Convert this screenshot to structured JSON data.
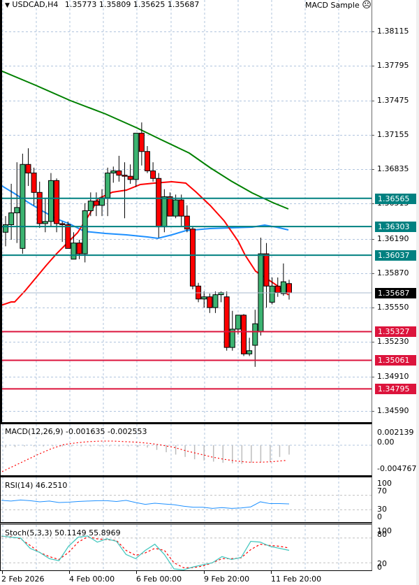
{
  "header": {
    "symbol": "USDCAD,H4",
    "open": "1.35773",
    "high": "1.35809",
    "low": "1.35625",
    "close": "1.35687",
    "ea_name": "MACD Sample",
    "ea_status_icon": "sad-face-icon",
    "ea_status_glyph": "☹"
  },
  "colors": {
    "bull_candle": "#3cb371",
    "bear_candle": "#ff0000",
    "ma_fast": "#ff0000",
    "ma_mid": "#1e90ff",
    "ma_slow": "#008000",
    "resistance_level": "#008080",
    "support_level": "#dc143c",
    "current_price_bg": "#000000",
    "grid": "#b0c4de"
  },
  "price_axis": {
    "ticks": [
      "1.38115",
      "1.37795",
      "1.37475",
      "1.37155",
      "1.36835",
      "1.36515",
      "1.36190",
      "1.35870",
      "1.35550",
      "1.35230",
      "1.34910",
      "1.34590"
    ],
    "current_price": "1.35687",
    "levels": [
      {
        "value": "1.36565",
        "type": "resistance"
      },
      {
        "value": "1.36303",
        "type": "resistance"
      },
      {
        "value": "1.36037",
        "type": "resistance"
      },
      {
        "value": "1.35327",
        "type": "support"
      },
      {
        "value": "1.35061",
        "type": "support"
      },
      {
        "value": "1.34795",
        "type": "support"
      }
    ]
  },
  "time_axis": {
    "labels": [
      "2 Feb 2026",
      "4 Feb 00:00",
      "6 Feb 00:00",
      "9 Feb 20:00",
      "11 Feb 20:00"
    ]
  },
  "macd": {
    "label": "MACD(12,26,9) -0.001635 -0.002553",
    "axis": [
      "0.002139",
      "0.00",
      "-0.004767"
    ]
  },
  "rsi": {
    "label": "RSI(14) 46.2510",
    "axis": [
      "100",
      "70",
      "30",
      "0"
    ]
  },
  "stoch": {
    "label": "Stoch(5,3,3) 50.1149 55.8969",
    "axis": [
      "100",
      "80",
      "20",
      "0"
    ]
  },
  "chart_data": [
    {
      "type": "candlestick",
      "title": "USDCAD,H4 1.35773 1.35809 1.35625 1.35687",
      "ylim": [
        1.3449,
        1.3842
      ],
      "grid": true,
      "x": [
        "2 Feb 2026",
        "",
        "",
        "",
        "",
        "",
        "",
        "",
        "4 Feb 00:00",
        "",
        "",
        "",
        "",
        "",
        "",
        "",
        "",
        "",
        "",
        "6 Feb 00:00",
        "",
        "",
        "",
        "",
        "",
        "",
        "",
        "",
        "",
        "",
        "",
        "",
        "9 Feb 20:00",
        "",
        "",
        "",
        "",
        "",
        "",
        "",
        "",
        "11 Feb 20:00"
      ],
      "candles": [
        {
          "o": 1.3625,
          "h": 1.364,
          "l": 1.3612,
          "c": 1.3632
        },
        {
          "o": 1.3632,
          "h": 1.367,
          "l": 1.3618,
          "c": 1.3643
        },
        {
          "o": 1.3643,
          "h": 1.369,
          "l": 1.3615,
          "c": 1.3648
        },
        {
          "o": 1.361,
          "h": 1.3698,
          "l": 1.3605,
          "c": 1.3688
        },
        {
          "o": 1.3688,
          "h": 1.3703,
          "l": 1.3668,
          "c": 1.368
        },
        {
          "o": 1.368,
          "h": 1.3685,
          "l": 1.365,
          "c": 1.3662
        },
        {
          "o": 1.3662,
          "h": 1.3672,
          "l": 1.3629,
          "c": 1.3633
        },
        {
          "o": 1.3633,
          "h": 1.3657,
          "l": 1.3625,
          "c": 1.3635
        },
        {
          "o": 1.3635,
          "h": 1.368,
          "l": 1.363,
          "c": 1.3673
        },
        {
          "o": 1.3673,
          "h": 1.3675,
          "l": 1.3625,
          "c": 1.3633
        },
        {
          "o": 1.3633,
          "h": 1.3635,
          "l": 1.3616,
          "c": 1.3632
        },
        {
          "o": 1.3632,
          "h": 1.3635,
          "l": 1.361,
          "c": 1.361
        },
        {
          "o": 1.36,
          "h": 1.3625,
          "l": 1.36,
          "c": 1.3615
        },
        {
          "o": 1.3615,
          "h": 1.3618,
          "l": 1.36,
          "c": 1.3605
        },
        {
          "o": 1.3605,
          "h": 1.3652,
          "l": 1.3597,
          "c": 1.3645
        },
        {
          "o": 1.3645,
          "h": 1.3662,
          "l": 1.364,
          "c": 1.3654
        },
        {
          "o": 1.3654,
          "h": 1.3662,
          "l": 1.364,
          "c": 1.365
        },
        {
          "o": 1.365,
          "h": 1.3665,
          "l": 1.364,
          "c": 1.3657
        },
        {
          "o": 1.3657,
          "h": 1.3685,
          "l": 1.364,
          "c": 1.368
        },
        {
          "o": 1.368,
          "h": 1.3686,
          "l": 1.3671,
          "c": 1.3682
        },
        {
          "o": 1.3682,
          "h": 1.3696,
          "l": 1.3672,
          "c": 1.3678
        },
        {
          "o": 1.3678,
          "h": 1.369,
          "l": 1.3638,
          "c": 1.3677
        },
        {
          "o": 1.3677,
          "h": 1.3688,
          "l": 1.367,
          "c": 1.3674
        },
        {
          "o": 1.3674,
          "h": 1.3695,
          "l": 1.3667,
          "c": 1.3717
        },
        {
          "o": 1.3717,
          "h": 1.3727,
          "l": 1.3687,
          "c": 1.37
        },
        {
          "o": 1.37,
          "h": 1.3705,
          "l": 1.368,
          "c": 1.3682
        },
        {
          "o": 1.3682,
          "h": 1.369,
          "l": 1.3672,
          "c": 1.3675
        },
        {
          "o": 1.3675,
          "h": 1.368,
          "l": 1.362,
          "c": 1.363
        },
        {
          "o": 1.363,
          "h": 1.3665,
          "l": 1.3625,
          "c": 1.3658
        },
        {
          "o": 1.3658,
          "h": 1.3662,
          "l": 1.364,
          "c": 1.364
        },
        {
          "o": 1.364,
          "h": 1.366,
          "l": 1.3638,
          "c": 1.3655
        },
        {
          "o": 1.3655,
          "h": 1.366,
          "l": 1.363,
          "c": 1.364
        },
        {
          "o": 1.364,
          "h": 1.365,
          "l": 1.3625,
          "c": 1.3628
        },
        {
          "o": 1.3628,
          "h": 1.363,
          "l": 1.3572,
          "c": 1.3575
        },
        {
          "o": 1.3575,
          "h": 1.3578,
          "l": 1.356,
          "c": 1.3563
        },
        {
          "o": 1.3563,
          "h": 1.357,
          "l": 1.3555,
          "c": 1.3565
        },
        {
          "o": 1.3565,
          "h": 1.3568,
          "l": 1.355,
          "c": 1.3555
        },
        {
          "o": 1.3555,
          "h": 1.357,
          "l": 1.355,
          "c": 1.3567
        },
        {
          "o": 1.3567,
          "h": 1.357,
          "l": 1.356,
          "c": 1.3569
        },
        {
          "o": 1.3565,
          "h": 1.357,
          "l": 1.3515,
          "c": 1.3518
        },
        {
          "o": 1.3518,
          "h": 1.3552,
          "l": 1.3515,
          "c": 1.3535
        },
        {
          "o": 1.3535,
          "h": 1.3543,
          "l": 1.353,
          "c": 1.3548
        },
        {
          "o": 1.3548,
          "h": 1.3549,
          "l": 1.351,
          "c": 1.3512
        },
        {
          "o": 1.3512,
          "h": 1.3527,
          "l": 1.351,
          "c": 1.3515
        },
        {
          "o": 1.352,
          "h": 1.3553,
          "l": 1.35,
          "c": 1.354
        },
        {
          "o": 1.3533,
          "h": 1.362,
          "l": 1.3529,
          "c": 1.3605
        },
        {
          "o": 1.3605,
          "h": 1.3615,
          "l": 1.3555,
          "c": 1.3575
        },
        {
          "o": 1.356,
          "h": 1.3583,
          "l": 1.3558,
          "c": 1.3575
        },
        {
          "o": 1.3575,
          "h": 1.3583,
          "l": 1.3565,
          "c": 1.3569
        },
        {
          "o": 1.3568,
          "h": 1.3596,
          "l": 1.3566,
          "c": 1.3579
        },
        {
          "o": 1.35773,
          "h": 1.35809,
          "l": 1.35625,
          "c": 1.35687
        }
      ],
      "moving_averages": [
        {
          "name": "MA fast (red)",
          "start": 1.3554,
          "peak": 1.3676,
          "end": 1.3565
        },
        {
          "name": "MA mid (blue)",
          "start": 1.3665,
          "low": 1.3618,
          "end": 1.3629
        },
        {
          "name": "MA slow (green)",
          "start": 1.3775,
          "end": 1.365
        }
      ],
      "horizontal_levels": [
        1.36565,
        1.36303,
        1.36037,
        1.35327,
        1.35061,
        1.34795
      ],
      "current_price": 1.35687
    },
    {
      "type": "bar",
      "title": "MACD(12,26,9) -0.001635 -0.002553",
      "ylim": [
        -0.004767,
        0.002139
      ],
      "series": [
        {
          "name": "MACD histogram",
          "values": [
            -0.0004,
            -0.0003,
            -0.0002,
            -0.0002,
            -0.0002,
            -0.0002,
            -0.0002,
            -0.0002,
            -0.0002,
            -0.0002,
            -0.0002,
            -0.0002,
            -0.0002,
            -0.0002,
            -0.0003,
            -0.0004,
            -0.0008,
            -0.0012,
            -0.0016,
            -0.002,
            -0.0024,
            -0.0026,
            -0.0028,
            -0.003,
            -0.0031,
            -0.0032,
            -0.003,
            -0.0029,
            -0.0028,
            -0.002,
            -0.0016
          ]
        },
        {
          "name": "Signal (dotted red)",
          "values": [
            -0.0045,
            -0.0035,
            -0.0025,
            -0.0015,
            -0.0006,
            0.0001,
            0.0004,
            0.0006,
            0.0007,
            0.0007,
            0.0006,
            0.0005,
            0.0003,
            0.0,
            -0.0004,
            -0.001,
            -0.0015,
            -0.002,
            -0.0024,
            -0.0027,
            -0.0029,
            -0.0029,
            -0.0028,
            -0.0026
          ]
        }
      ]
    },
    {
      "type": "line",
      "title": "RSI(14) 46.2510",
      "ylim": [
        0,
        100
      ],
      "levels": [
        30,
        70
      ],
      "series": [
        {
          "name": "RSI",
          "values": [
            56,
            54,
            57,
            55,
            52,
            54,
            50,
            51,
            53,
            54,
            55,
            55,
            53,
            56,
            50,
            45,
            48,
            46,
            44,
            40,
            37,
            37,
            34,
            36,
            34,
            35,
            38,
            52,
            47,
            47,
            46.25
          ]
        }
      ]
    },
    {
      "type": "line",
      "title": "Stoch(5,3,3) 50.1149 55.8969",
      "ylim": [
        0,
        100
      ],
      "levels": [
        20,
        80
      ],
      "series": [
        {
          "name": "%K",
          "values": [
            85,
            82,
            80,
            55,
            45,
            30,
            25,
            60,
            82,
            85,
            70,
            78,
            72,
            40,
            30,
            50,
            65,
            40,
            5,
            3,
            10,
            15,
            20,
            35,
            28,
            33,
            72,
            70,
            60,
            55,
            50.11
          ]
        },
        {
          "name": "%D",
          "values": [
            84,
            83,
            78,
            62,
            45,
            35,
            28,
            45,
            70,
            83,
            78,
            76,
            74,
            50,
            38,
            44,
            55,
            50,
            20,
            8,
            8,
            12,
            20,
            30,
            30,
            32,
            52,
            65,
            62,
            60,
            55.9
          ]
        }
      ]
    }
  ]
}
